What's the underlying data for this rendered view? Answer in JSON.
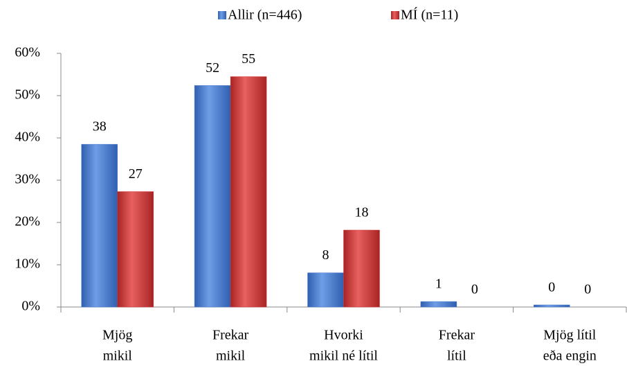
{
  "chart_data": {
    "type": "bar",
    "categories": [
      [
        "Mjög",
        "mikil"
      ],
      [
        "Frekar",
        "mikil"
      ],
      [
        "Hvorki",
        "mikil né lítil"
      ],
      [
        "Frekar",
        "lítil"
      ],
      [
        "Mjög lítil",
        "eða engin"
      ]
    ],
    "series": [
      {
        "name": "Allir  (n=446)",
        "color": "#4a7fd0",
        "values": [
          38.5,
          52.4,
          8.1,
          1.3,
          0.5
        ],
        "value_labels": [
          "38",
          "52",
          "8",
          "1",
          "0"
        ]
      },
      {
        "name": "MÍ (n=11)",
        "color": "#d03b3b",
        "values": [
          27.3,
          54.5,
          18.2,
          0,
          0
        ],
        "value_labels": [
          "27",
          "55",
          "18",
          "0",
          "0"
        ]
      }
    ],
    "ylim": [
      0,
      60
    ],
    "yticks": [
      {
        "value": 0,
        "label": "0%"
      },
      {
        "value": 10,
        "label": "10%"
      },
      {
        "value": 20,
        "label": "20%"
      },
      {
        "value": 30,
        "label": "30%"
      },
      {
        "value": 40,
        "label": "40%"
      },
      {
        "value": 50,
        "label": "50%"
      },
      {
        "value": 60,
        "label": "60%"
      }
    ],
    "legend": "top"
  }
}
